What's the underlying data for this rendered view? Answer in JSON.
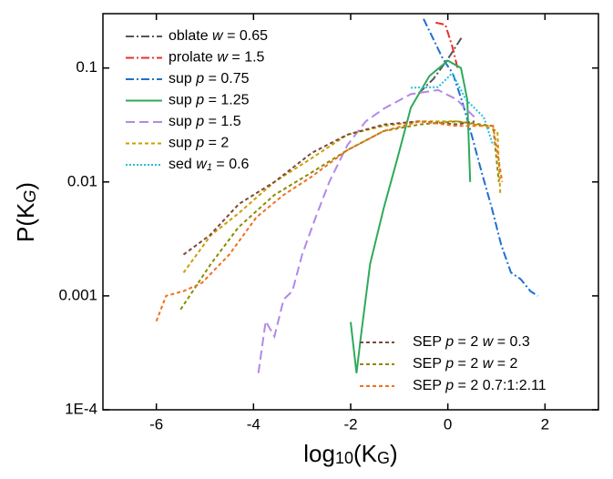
{
  "chart_data": {
    "type": "line",
    "log_y": true,
    "xlabel": [
      "log",
      "10",
      "(K",
      "G",
      ")"
    ],
    "ylabel": [
      "P(K",
      "G",
      ")"
    ],
    "xlim": [
      -7.1,
      3.1
    ],
    "ylim": [
      0.0001,
      0.3
    ],
    "xticks": [
      -6,
      -4,
      -2,
      0,
      2
    ],
    "yticks": [
      {
        "value": 0.0001,
        "label": "1E-4"
      },
      0.001,
      0.01,
      0.1
    ],
    "series": [
      {
        "name": "oblate w = 0.65",
        "color": "#555555",
        "style": "dashdot",
        "legend": "upper left",
        "x": [
          -0.6,
          -0.3,
          0,
          0.3
        ],
        "values": [
          0.06,
          0.08,
          0.12,
          0.19
        ]
      },
      {
        "name": "prolate w = 1.5",
        "color": "#e8302a",
        "style": "dashdot",
        "legend": "upper left",
        "x": [
          -0.25,
          -0.05,
          0.1,
          0.2
        ],
        "values": [
          0.25,
          0.24,
          0.15,
          0.1
        ]
      },
      {
        "name": "sup p = 0.75",
        "color": "#1f6fd0",
        "style": "dashdot",
        "legend": "upper left",
        "x": [
          -0.5,
          -0.3,
          -0.1,
          0.1,
          0.3,
          0.5,
          0.7,
          0.9,
          1.1,
          1.3,
          1.5,
          1.7,
          1.85
        ],
        "values": [
          0.27,
          0.18,
          0.12,
          0.09,
          0.05,
          0.025,
          0.012,
          0.006,
          0.0028,
          0.0016,
          0.0014,
          0.0011,
          0.001
        ]
      },
      {
        "name": "sup p = 1.25",
        "color": "#2eaa5a",
        "style": "solid",
        "legend": "upper left",
        "x": [
          -2,
          -1.88,
          -1.79,
          -1.6,
          -1.32,
          -1.04,
          -0.76,
          -0.38,
          0,
          0.27,
          0.4,
          0.46
        ],
        "values": [
          0.00059,
          0.00021,
          0.00044,
          0.0019,
          0.0059,
          0.016,
          0.045,
          0.085,
          0.116,
          0.1,
          0.053,
          0.01
        ]
      },
      {
        "name": "sup p = 1.5",
        "color": "#b388e8",
        "style": "dash",
        "legend": "upper left",
        "x": [
          -3.9,
          -3.75,
          -3.57,
          -3.38,
          -3.2,
          -3.0,
          -2.72,
          -2.44,
          -2.07,
          -1.69,
          -1.32,
          -0.76,
          -0.2,
          0.18,
          0.55
        ],
        "values": [
          0.00021,
          0.0006,
          0.00044,
          0.00093,
          0.0011,
          0.0023,
          0.0049,
          0.01,
          0.021,
          0.034,
          0.044,
          0.059,
          0.064,
          0.053,
          0.037
        ]
      },
      {
        "name": "sup p = 2",
        "color": "#c8a000",
        "style": "shortdash",
        "legend": "upper left",
        "x": [
          -5.44,
          -4.88,
          -4.31,
          -3.57,
          -2.82,
          -2.07,
          -1.32,
          -0.57,
          0.18,
          0.74,
          1.02,
          1.08
        ],
        "values": [
          0.0016,
          0.0034,
          0.0053,
          0.01,
          0.016,
          0.026,
          0.031,
          0.034,
          0.034,
          0.031,
          0.028,
          0.0077
        ]
      },
      {
        "name": "sed w1 = 0.6",
        "color": "#22c0d8",
        "style": "dot",
        "legend": "upper left",
        "x": [
          -0.76,
          -0.2,
          0.09,
          0.37,
          0.74,
          0.93
        ],
        "values": [
          0.067,
          0.068,
          0.09,
          0.053,
          0.037,
          0.021
        ]
      },
      {
        "name": "SEP p = 2 w = 0.3",
        "color": "#7a4a3a",
        "style": "shortdash",
        "legend": "lower right",
        "x": [
          -5.44,
          -4.9,
          -4.3,
          -3.57,
          -2.8,
          -2.07,
          -1.3,
          -0.6,
          0.2,
          0.55
        ],
        "values": [
          0.0023,
          0.0034,
          0.0064,
          0.01,
          0.018,
          0.026,
          0.032,
          0.034,
          0.032,
          0.034
        ]
      },
      {
        "name": "SEP p = 2 w = 2",
        "color": "#8b8b00",
        "style": "shortdash",
        "legend": "lower right",
        "x": [
          -5.5,
          -4.88,
          -4.31,
          -3.57,
          -2.82,
          -2.07,
          -1.32,
          -0.57,
          0.18,
          0.93,
          1.05
        ],
        "values": [
          0.00076,
          0.0019,
          0.004,
          0.0077,
          0.012,
          0.019,
          0.028,
          0.032,
          0.034,
          0.031,
          0.01
        ]
      },
      {
        "name": "SEP p = 2 0.7:1:2.11",
        "color": "#f07020",
        "style": "shortdash",
        "legend": "lower right",
        "x": [
          -6,
          -5.8,
          -5.44,
          -5.06,
          -4.5,
          -3.94,
          -3.38,
          -2.82,
          -2.07,
          -1.32,
          -0.57,
          0.18,
          0.93,
          1.12
        ],
        "values": [
          0.0006,
          0.001,
          0.0011,
          0.0013,
          0.0023,
          0.0049,
          0.0077,
          0.011,
          0.019,
          0.028,
          0.034,
          0.031,
          0.031,
          0.01
        ]
      }
    ]
  }
}
